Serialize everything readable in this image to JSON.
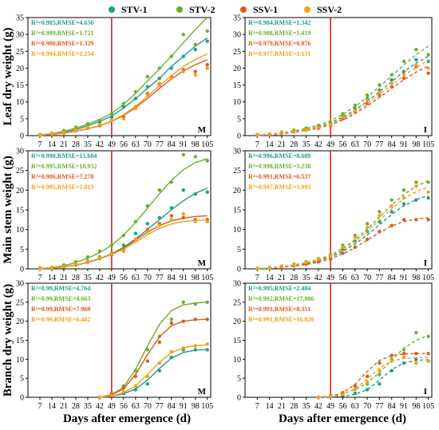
{
  "legend": {
    "placement": "top-center",
    "items": [
      {
        "name": "STV-1",
        "color": "#1f9e89"
      },
      {
        "name": "STV-2",
        "color": "#6aaf2e"
      },
      {
        "name": "SSV-1",
        "color": "#e0591c"
      },
      {
        "name": "SSV-2",
        "color": "#f2a01a"
      }
    ]
  },
  "xlabel_shared": "Days after emergence (d)",
  "row_labels": [
    "Leaf dry weight (g)",
    "Main stem weight (g)",
    "Branch dry weight (g)"
  ],
  "marker_line_color": "#e0201a",
  "chart_data": [
    {
      "type": "scatter",
      "panel": "M",
      "ylabel": "Leaf dry weight (g)",
      "x_ticks": [
        7,
        14,
        21,
        28,
        35,
        42,
        49,
        56,
        63,
        70,
        77,
        84,
        91,
        98,
        105
      ],
      "xlim": [
        0,
        107
      ],
      "y_ticks": [
        0,
        5,
        10,
        15,
        20,
        25,
        30,
        35
      ],
      "ylim": [
        0,
        35
      ],
      "vline_x": 49,
      "fit_style": "solid",
      "stats": [
        "R²=0.985,RMSE=4.656",
        "R²=0.989,RMSE=1.721",
        "R²=0.980,RMSE=1.329",
        "R²=0.994,RMSE=2.254"
      ],
      "x": [
        7,
        14,
        21,
        28,
        35,
        42,
        49,
        56,
        63,
        70,
        77,
        84,
        91,
        98,
        105
      ],
      "series": [
        {
          "name": "STV-1",
          "values": [
            0.2,
            0.5,
            1.2,
            2.0,
            3.0,
            4.0,
            5.5,
            8.5,
            11.0,
            14.5,
            17.0,
            20.0,
            23.5,
            25.5,
            28.0
          ],
          "fit": [
            0.1,
            0.4,
            1.0,
            1.8,
            2.9,
            4.2,
            5.8,
            8.2,
            11.0,
            14.0,
            17.0,
            20.5,
            23.5,
            26.5,
            29.0
          ]
        },
        {
          "name": "STV-2",
          "values": [
            0.3,
            0.7,
            1.5,
            2.5,
            3.5,
            4.5,
            6.5,
            9.5,
            13.0,
            17.5,
            20.0,
            23.5,
            30.0,
            27.0,
            31.0
          ],
          "fit": [
            0.2,
            0.6,
            1.3,
            2.2,
            3.4,
            4.8,
            6.6,
            9.3,
            12.5,
            16.2,
            19.8,
            23.6,
            27.5,
            31.5,
            35.0
          ]
        },
        {
          "name": "SSV-1",
          "values": [
            0.2,
            0.4,
            0.8,
            1.5,
            2.2,
            3.0,
            4.5,
            5.5,
            8.5,
            12.5,
            15.0,
            17.5,
            19.5,
            19.0,
            21.0
          ],
          "fit": [
            0.1,
            0.3,
            0.7,
            1.3,
            2.0,
            2.9,
            4.2,
            6.0,
            8.3,
            11.0,
            14.0,
            16.8,
            19.2,
            21.0,
            22.5
          ]
        },
        {
          "name": "SSV-2",
          "values": [
            0.2,
            0.5,
            1.0,
            1.7,
            2.5,
            3.3,
            4.5,
            5.0,
            8.0,
            12.0,
            15.5,
            17.0,
            19.0,
            18.0,
            20.0
          ],
          "fit": [
            0.1,
            0.4,
            0.8,
            1.4,
            2.1,
            3.0,
            4.3,
            6.2,
            8.7,
            11.6,
            14.8,
            17.8,
            20.5,
            22.6,
            24.2
          ]
        }
      ]
    },
    {
      "type": "scatter",
      "panel": "I",
      "ylabel": "Leaf dry weight (g)",
      "x_ticks": [
        7,
        14,
        21,
        28,
        35,
        42,
        49,
        56,
        63,
        70,
        77,
        84,
        91,
        98,
        105
      ],
      "xlim": [
        0,
        107
      ],
      "y_ticks": [
        0,
        5,
        10,
        15,
        20,
        25,
        30,
        35
      ],
      "ylim": [
        0,
        35
      ],
      "vline_x": 49,
      "fit_style": "dashed",
      "stats": [
        "R²=0.984,RMSE=1.342",
        "R²=0.988,RMSE=1.419",
        "R²=0.979,RMSE=0.876",
        "R²=0.977,RMSE=1.131"
      ],
      "x": [
        7,
        14,
        21,
        28,
        35,
        42,
        49,
        56,
        63,
        70,
        77,
        84,
        91,
        98,
        105
      ],
      "series": [
        {
          "name": "STV-1",
          "values": [
            0.2,
            0.4,
            0.8,
            1.3,
            1.8,
            2.5,
            3.5,
            6.0,
            8.0,
            11.0,
            13.5,
            16.5,
            19.0,
            22.5,
            22.0
          ],
          "fit": [
            0.1,
            0.3,
            0.6,
            1.1,
            1.7,
            2.6,
            3.8,
            5.5,
            7.6,
            10.2,
            13.0,
            16.0,
            19.0,
            21.5,
            23.5
          ]
        },
        {
          "name": "STV-2",
          "values": [
            0.3,
            0.5,
            1.0,
            1.6,
            2.2,
            3.0,
            4.0,
            6.5,
            9.0,
            12.0,
            15.0,
            18.0,
            22.0,
            25.5,
            24.0
          ],
          "fit": [
            0.2,
            0.4,
            0.8,
            1.4,
            2.1,
            3.1,
            4.4,
            6.3,
            8.6,
            11.4,
            14.5,
            17.7,
            21.0,
            24.0,
            26.5
          ]
        },
        {
          "name": "SSV-1",
          "values": [
            0.2,
            0.3,
            0.7,
            1.1,
            1.6,
            2.2,
            3.0,
            5.0,
            7.0,
            9.5,
            12.0,
            14.5,
            17.0,
            20.5,
            18.5
          ],
          "fit": [
            0.1,
            0.2,
            0.5,
            1.0,
            1.5,
            2.2,
            3.2,
            4.6,
            6.5,
            8.8,
            11.3,
            14.0,
            16.6,
            18.8,
            20.6
          ]
        },
        {
          "name": "SSV-2",
          "values": [
            0.2,
            0.4,
            0.8,
            1.2,
            1.7,
            2.4,
            3.3,
            5.5,
            7.5,
            10.5,
            13.0,
            15.5,
            18.0,
            21.0,
            20.0
          ],
          "fit": [
            0.1,
            0.3,
            0.6,
            1.1,
            1.6,
            2.4,
            3.5,
            5.0,
            7.0,
            9.5,
            12.2,
            15.0,
            17.8,
            20.2,
            22.2
          ]
        }
      ]
    },
    {
      "type": "scatter",
      "panel": "M",
      "ylabel": "Main stem weight (g)",
      "x_ticks": [
        7,
        14,
        21,
        28,
        35,
        42,
        49,
        56,
        63,
        70,
        77,
        84,
        91,
        98,
        105
      ],
      "xlim": [
        0,
        107
      ],
      "y_ticks": [
        0,
        5,
        10,
        15,
        20,
        25,
        30
      ],
      "ylim": [
        0,
        30
      ],
      "vline_x": 49,
      "fit_style": "solid",
      "stats": [
        "R²=0.990,RMSE=15.604",
        "R²=0.995,RMSE=10.932",
        "R²=0.986,RMSE=7.278",
        "R²=0.995,RMSE=2.813"
      ],
      "x": [
        7,
        14,
        21,
        28,
        35,
        42,
        49,
        56,
        63,
        70,
        77,
        84,
        91,
        98,
        105
      ],
      "series": [
        {
          "name": "STV-1",
          "values": [
            0.1,
            0.2,
            0.6,
            1.2,
            2.0,
            3.0,
            4.0,
            6.0,
            9.0,
            11.5,
            13.0,
            15.5,
            20.0,
            19.0,
            19.5
          ],
          "fit": [
            0.1,
            0.2,
            0.5,
            1.0,
            1.7,
            2.6,
            3.8,
            5.5,
            7.6,
            10.0,
            12.5,
            15.0,
            17.3,
            19.2,
            20.5
          ]
        },
        {
          "name": "STV-2",
          "values": [
            0.2,
            0.4,
            1.0,
            1.8,
            3.0,
            4.5,
            6.0,
            8.5,
            12.0,
            16.0,
            20.0,
            22.0,
            29.0,
            28.5,
            27.5
          ],
          "fit": [
            0.1,
            0.3,
            0.8,
            1.6,
            2.7,
            4.1,
            6.0,
            8.6,
            11.8,
            15.4,
            19.1,
            22.5,
            25.2,
            27.0,
            28.0
          ]
        },
        {
          "name": "SSV-1",
          "values": [
            0.1,
            0.2,
            0.5,
            1.0,
            1.7,
            2.6,
            3.5,
            5.0,
            7.5,
            10.0,
            11.5,
            13.5,
            13.0,
            12.5,
            12.5
          ],
          "fit": [
            0.1,
            0.2,
            0.5,
            0.9,
            1.6,
            2.5,
            3.7,
            5.3,
            7.3,
            9.3,
            11.0,
            12.2,
            12.9,
            13.3,
            13.5
          ]
        },
        {
          "name": "SSV-2",
          "values": [
            0.1,
            0.3,
            0.6,
            1.2,
            1.9,
            2.8,
            3.8,
            4.5,
            7.5,
            9.5,
            11.0,
            12.5,
            14.0,
            12.0,
            12.0
          ],
          "fit": [
            0.1,
            0.2,
            0.5,
            1.0,
            1.6,
            2.5,
            3.6,
            5.0,
            6.8,
            8.7,
            10.3,
            11.4,
            12.0,
            12.3,
            12.4
          ]
        }
      ]
    },
    {
      "type": "scatter",
      "panel": "I",
      "ylabel": "Main stem weight (g)",
      "x_ticks": [
        7,
        14,
        21,
        28,
        35,
        42,
        49,
        56,
        63,
        70,
        77,
        84,
        91,
        98,
        105
      ],
      "xlim": [
        0,
        107
      ],
      "y_ticks": [
        0,
        5,
        10,
        15,
        20,
        25,
        30
      ],
      "ylim": [
        0,
        30
      ],
      "vline_x": 49,
      "fit_style": "dashed",
      "stats": [
        "R²=0.996,RMSE=8.689",
        "R²=0.998,RMSE=3.238",
        "R²=0.991,RMSE=6.537",
        "R²=0.997,RMSE=3.995"
      ],
      "x": [
        7,
        14,
        21,
        28,
        35,
        42,
        49,
        56,
        63,
        70,
        77,
        84,
        91,
        98,
        105
      ],
      "series": [
        {
          "name": "STV-1",
          "values": [
            0.1,
            0.2,
            0.5,
            1.0,
            1.5,
            2.2,
            3.0,
            5.0,
            7.0,
            9.5,
            12.0,
            14.5,
            16.5,
            17.5,
            18.0
          ],
          "fit": [
            0.1,
            0.2,
            0.4,
            0.8,
            1.3,
            2.0,
            3.0,
            4.4,
            6.3,
            8.6,
            11.2,
            13.8,
            16.0,
            17.6,
            18.6
          ]
        },
        {
          "name": "STV-2",
          "values": [
            0.1,
            0.3,
            0.7,
            1.2,
            1.8,
            2.6,
            3.5,
            6.0,
            8.5,
            11.5,
            14.5,
            17.5,
            20.0,
            22.0,
            22.0
          ],
          "fit": [
            0.1,
            0.2,
            0.5,
            1.0,
            1.6,
            2.4,
            3.5,
            5.2,
            7.4,
            10.1,
            13.2,
            16.2,
            18.9,
            21.0,
            22.4
          ]
        },
        {
          "name": "SSV-1",
          "values": [
            0.1,
            0.2,
            0.4,
            0.8,
            1.2,
            1.8,
            2.5,
            4.0,
            5.5,
            7.5,
            9.5,
            11.0,
            12.5,
            12.5,
            12.5
          ],
          "fit": [
            0.1,
            0.2,
            0.4,
            0.7,
            1.1,
            1.7,
            2.6,
            3.8,
            5.4,
            7.3,
            9.2,
            10.9,
            12.0,
            12.7,
            13.0
          ]
        },
        {
          "name": "SSV-2",
          "values": [
            0.1,
            0.2,
            0.6,
            1.0,
            1.6,
            2.4,
            3.2,
            5.5,
            8.0,
            10.5,
            13.5,
            16.0,
            18.0,
            21.0,
            19.5
          ],
          "fit": [
            0.1,
            0.2,
            0.5,
            0.9,
            1.5,
            2.2,
            3.2,
            4.8,
            6.9,
            9.5,
            12.4,
            15.3,
            17.8,
            19.6,
            20.8
          ]
        }
      ]
    },
    {
      "type": "scatter",
      "panel": "M",
      "ylabel": "Branch dry weight (g)",
      "x_ticks": [
        7,
        14,
        21,
        28,
        35,
        42,
        49,
        56,
        63,
        70,
        77,
        84,
        91,
        98,
        105
      ],
      "xlim": [
        0,
        107
      ],
      "y_ticks": [
        0,
        5,
        10,
        15,
        20,
        25,
        30
      ],
      "ylim": [
        0,
        30
      ],
      "vline_x": 49,
      "fit_style": "solid",
      "stats": [
        "R²=0.99,RMSE=4.764",
        "R²=0.99,RMSE=4.663",
        "R²=0.99,RMSE=7.969",
        "R²=0.99,RMSE=6.482"
      ],
      "x": [
        42,
        49,
        56,
        63,
        70,
        77,
        84,
        91,
        98,
        105
      ],
      "series": [
        {
          "name": "STV-1",
          "values": [
            0,
            0.5,
            1.0,
            2.0,
            3.5,
            7.0,
            10.5,
            12.5,
            12.5,
            12.5
          ],
          "fit": [
            0,
            0.3,
            0.9,
            2.2,
            4.5,
            7.6,
            10.3,
            11.8,
            12.4,
            12.6
          ]
        },
        {
          "name": "STV-2",
          "values": [
            0,
            1.0,
            3.0,
            7.0,
            12.5,
            16.0,
            20.5,
            25.0,
            24.5,
            25.0
          ],
          "fit": [
            0,
            0.7,
            2.7,
            7.3,
            13.5,
            19.2,
            22.8,
            24.3,
            24.8,
            25.0
          ]
        },
        {
          "name": "SSV-1",
          "values": [
            0,
            0.8,
            2.5,
            5.5,
            9.5,
            14.5,
            19.5,
            20.0,
            20.5,
            20.5
          ],
          "fit": [
            0,
            0.6,
            2.2,
            6.0,
            11.2,
            15.9,
            18.8,
            20.0,
            20.4,
            20.5
          ]
        },
        {
          "name": "SSV-2",
          "values": [
            0,
            0.5,
            1.5,
            3.0,
            5.5,
            9.0,
            12.0,
            13.0,
            13.5,
            14.0
          ],
          "fit": [
            0,
            0.3,
            1.2,
            3.0,
            6.0,
            9.2,
            11.7,
            13.0,
            13.6,
            13.8
          ]
        }
      ]
    },
    {
      "type": "scatter",
      "panel": "I",
      "ylabel": "Branch dry weight (g)",
      "x_ticks": [
        7,
        14,
        21,
        28,
        35,
        42,
        49,
        56,
        63,
        70,
        77,
        84,
        91,
        98,
        105
      ],
      "xlim": [
        0,
        107
      ],
      "y_ticks": [
        0,
        5,
        10,
        15,
        20,
        25,
        30
      ],
      "ylim": [
        0,
        30
      ],
      "vline_x": 49,
      "fit_style": "dashed",
      "stats": [
        "R²=0.995,RMSE=2.484",
        "R²=0.992,RMSE=17.086",
        "R²=0.991,RMSE=8.351",
        "R²=0.991,RMSE=16.020"
      ],
      "x": [
        42,
        49,
        56,
        63,
        70,
        77,
        84,
        91,
        98,
        105
      ],
      "series": [
        {
          "name": "STV-1",
          "values": [
            0,
            0.2,
            0.5,
            1.0,
            2.0,
            3.5,
            7.0,
            9.0,
            10.0,
            9.5
          ],
          "fit": [
            0,
            0.1,
            0.3,
            0.8,
            2.0,
            4.5,
            7.3,
            9.0,
            9.7,
            9.9
          ]
        },
        {
          "name": "STV-2",
          "values": [
            0,
            0.5,
            1.0,
            2.0,
            3.5,
            6.0,
            10.0,
            12.5,
            17.0,
            16.0
          ],
          "fit": [
            0,
            0.3,
            0.9,
            2.0,
            3.8,
            6.5,
            9.8,
            12.9,
            15.0,
            16.3
          ]
        },
        {
          "name": "SSV-1",
          "values": [
            0,
            0.4,
            1.2,
            3.0,
            5.5,
            9.0,
            11.0,
            11.5,
            11.5,
            11.5
          ],
          "fit": [
            0,
            0.3,
            1.2,
            3.4,
            6.8,
            9.7,
            11.0,
            11.4,
            11.5,
            11.5
          ]
        },
        {
          "name": "SSV-2",
          "values": [
            0,
            0.3,
            0.8,
            2.0,
            4.0,
            7.0,
            9.5,
            10.5,
            9.0,
            9.5
          ],
          "fit": [
            0,
            0.2,
            0.8,
            2.2,
            4.8,
            7.7,
            9.5,
            10.2,
            10.4,
            10.5
          ]
        }
      ]
    }
  ]
}
